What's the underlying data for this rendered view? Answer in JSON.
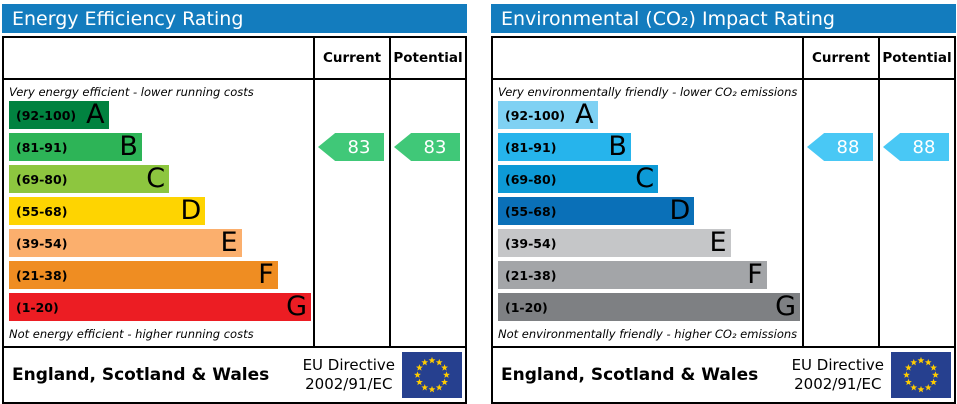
{
  "chart_data": [
    {
      "type": "bar",
      "title": "Energy Efficiency Rating",
      "categories": [
        "A (92-100)",
        "B (81-91)",
        "C (69-80)",
        "D (55-68)",
        "E (39-54)",
        "F (21-38)",
        "G (1-20)"
      ],
      "values": [
        33,
        44,
        53,
        65,
        77,
        89,
        100
      ],
      "series": [
        {
          "name": "Current",
          "values": [
            83
          ]
        },
        {
          "name": "Potential",
          "values": [
            83
          ]
        }
      ],
      "current_rating": 83,
      "current_band": "B",
      "potential_rating": 83,
      "potential_band": "B",
      "top_annotation": "Very energy efficient - lower running costs",
      "bottom_annotation": "Not energy efficient - higher running costs"
    },
    {
      "type": "bar",
      "title": "Environmental (CO₂) Impact Rating",
      "categories": [
        "A (92-100)",
        "B (81-91)",
        "C (69-80)",
        "D (55-68)",
        "E (39-54)",
        "F (21-38)",
        "G (1-20)"
      ],
      "values": [
        33,
        44,
        53,
        65,
        77,
        89,
        100
      ],
      "series": [
        {
          "name": "Current",
          "values": [
            88
          ]
        },
        {
          "name": "Potential",
          "values": [
            88
          ]
        }
      ],
      "current_rating": 88,
      "current_band": "B",
      "potential_rating": 88,
      "potential_band": "B",
      "top_annotation": "Very environmentally friendly - lower CO₂ emissions",
      "bottom_annotation": "Not environmentally friendly - higher CO₂ emissions"
    }
  ],
  "eu_flag": {
    "background": "#26408F",
    "stars": "#FFCC00"
  },
  "panels": [
    {
      "title": "Energy Efficiency Rating",
      "header_color": "#137CBE",
      "columns": {
        "current": "Current",
        "potential": "Potential"
      },
      "top_note": "Very energy efficient - lower running costs",
      "bottom_note": "Not energy efficient - higher running costs",
      "bands": [
        {
          "range": "(92-100)",
          "letter": "A",
          "color": "#018240",
          "width_pct": 33
        },
        {
          "range": "(81-91)",
          "letter": "B",
          "color": "#2DB457",
          "width_pct": 44
        },
        {
          "range": "(69-80)",
          "letter": "C",
          "color": "#8DC63F",
          "width_pct": 53
        },
        {
          "range": "(55-68)",
          "letter": "D",
          "color": "#FED401",
          "width_pct": 65
        },
        {
          "range": "(39-54)",
          "letter": "E",
          "color": "#FBAF6D",
          "width_pct": 77
        },
        {
          "range": "(21-38)",
          "letter": "F",
          "color": "#EF8D22",
          "width_pct": 89
        },
        {
          "range": "(1-20)",
          "letter": "G",
          "color": "#EC1D23",
          "width_pct": 100
        }
      ],
      "current": {
        "value": "83",
        "color": "#40C878",
        "band_index": 1
      },
      "potential": {
        "value": "83",
        "color": "#40C878",
        "band_index": 1
      },
      "footer": {
        "region": "England, Scotland & Wales",
        "directive": [
          "EU Directive",
          "2002/91/EC"
        ]
      }
    },
    {
      "title": "Environmental (CO₂) Impact Rating",
      "header_color": "#137CBE",
      "columns": {
        "current": "Current",
        "potential": "Potential"
      },
      "top_note": "Very environmentally friendly - lower CO₂ emissions",
      "bottom_note": "Not environmentally friendly - higher CO₂ emissions",
      "bands": [
        {
          "range": "(92-100)",
          "letter": "A",
          "color": "#7FD1F3",
          "width_pct": 33
        },
        {
          "range": "(81-91)",
          "letter": "B",
          "color": "#26B4EC",
          "width_pct": 44
        },
        {
          "range": "(69-80)",
          "letter": "C",
          "color": "#0D9AD6",
          "width_pct": 53
        },
        {
          "range": "(55-68)",
          "letter": "D",
          "color": "#0A70B8",
          "width_pct": 65
        },
        {
          "range": "(39-54)",
          "letter": "E",
          "color": "#C5C6C8",
          "width_pct": 77
        },
        {
          "range": "(21-38)",
          "letter": "F",
          "color": "#A3A5A8",
          "width_pct": 89
        },
        {
          "range": "(1-20)",
          "letter": "G",
          "color": "#7E8083",
          "width_pct": 100
        }
      ],
      "current": {
        "value": "88",
        "color": "#49C8F5",
        "band_index": 1
      },
      "potential": {
        "value": "88",
        "color": "#49C8F5",
        "band_index": 1
      },
      "footer": {
        "region": "England, Scotland & Wales",
        "directive": [
          "EU Directive",
          "2002/91/EC"
        ]
      }
    }
  ]
}
